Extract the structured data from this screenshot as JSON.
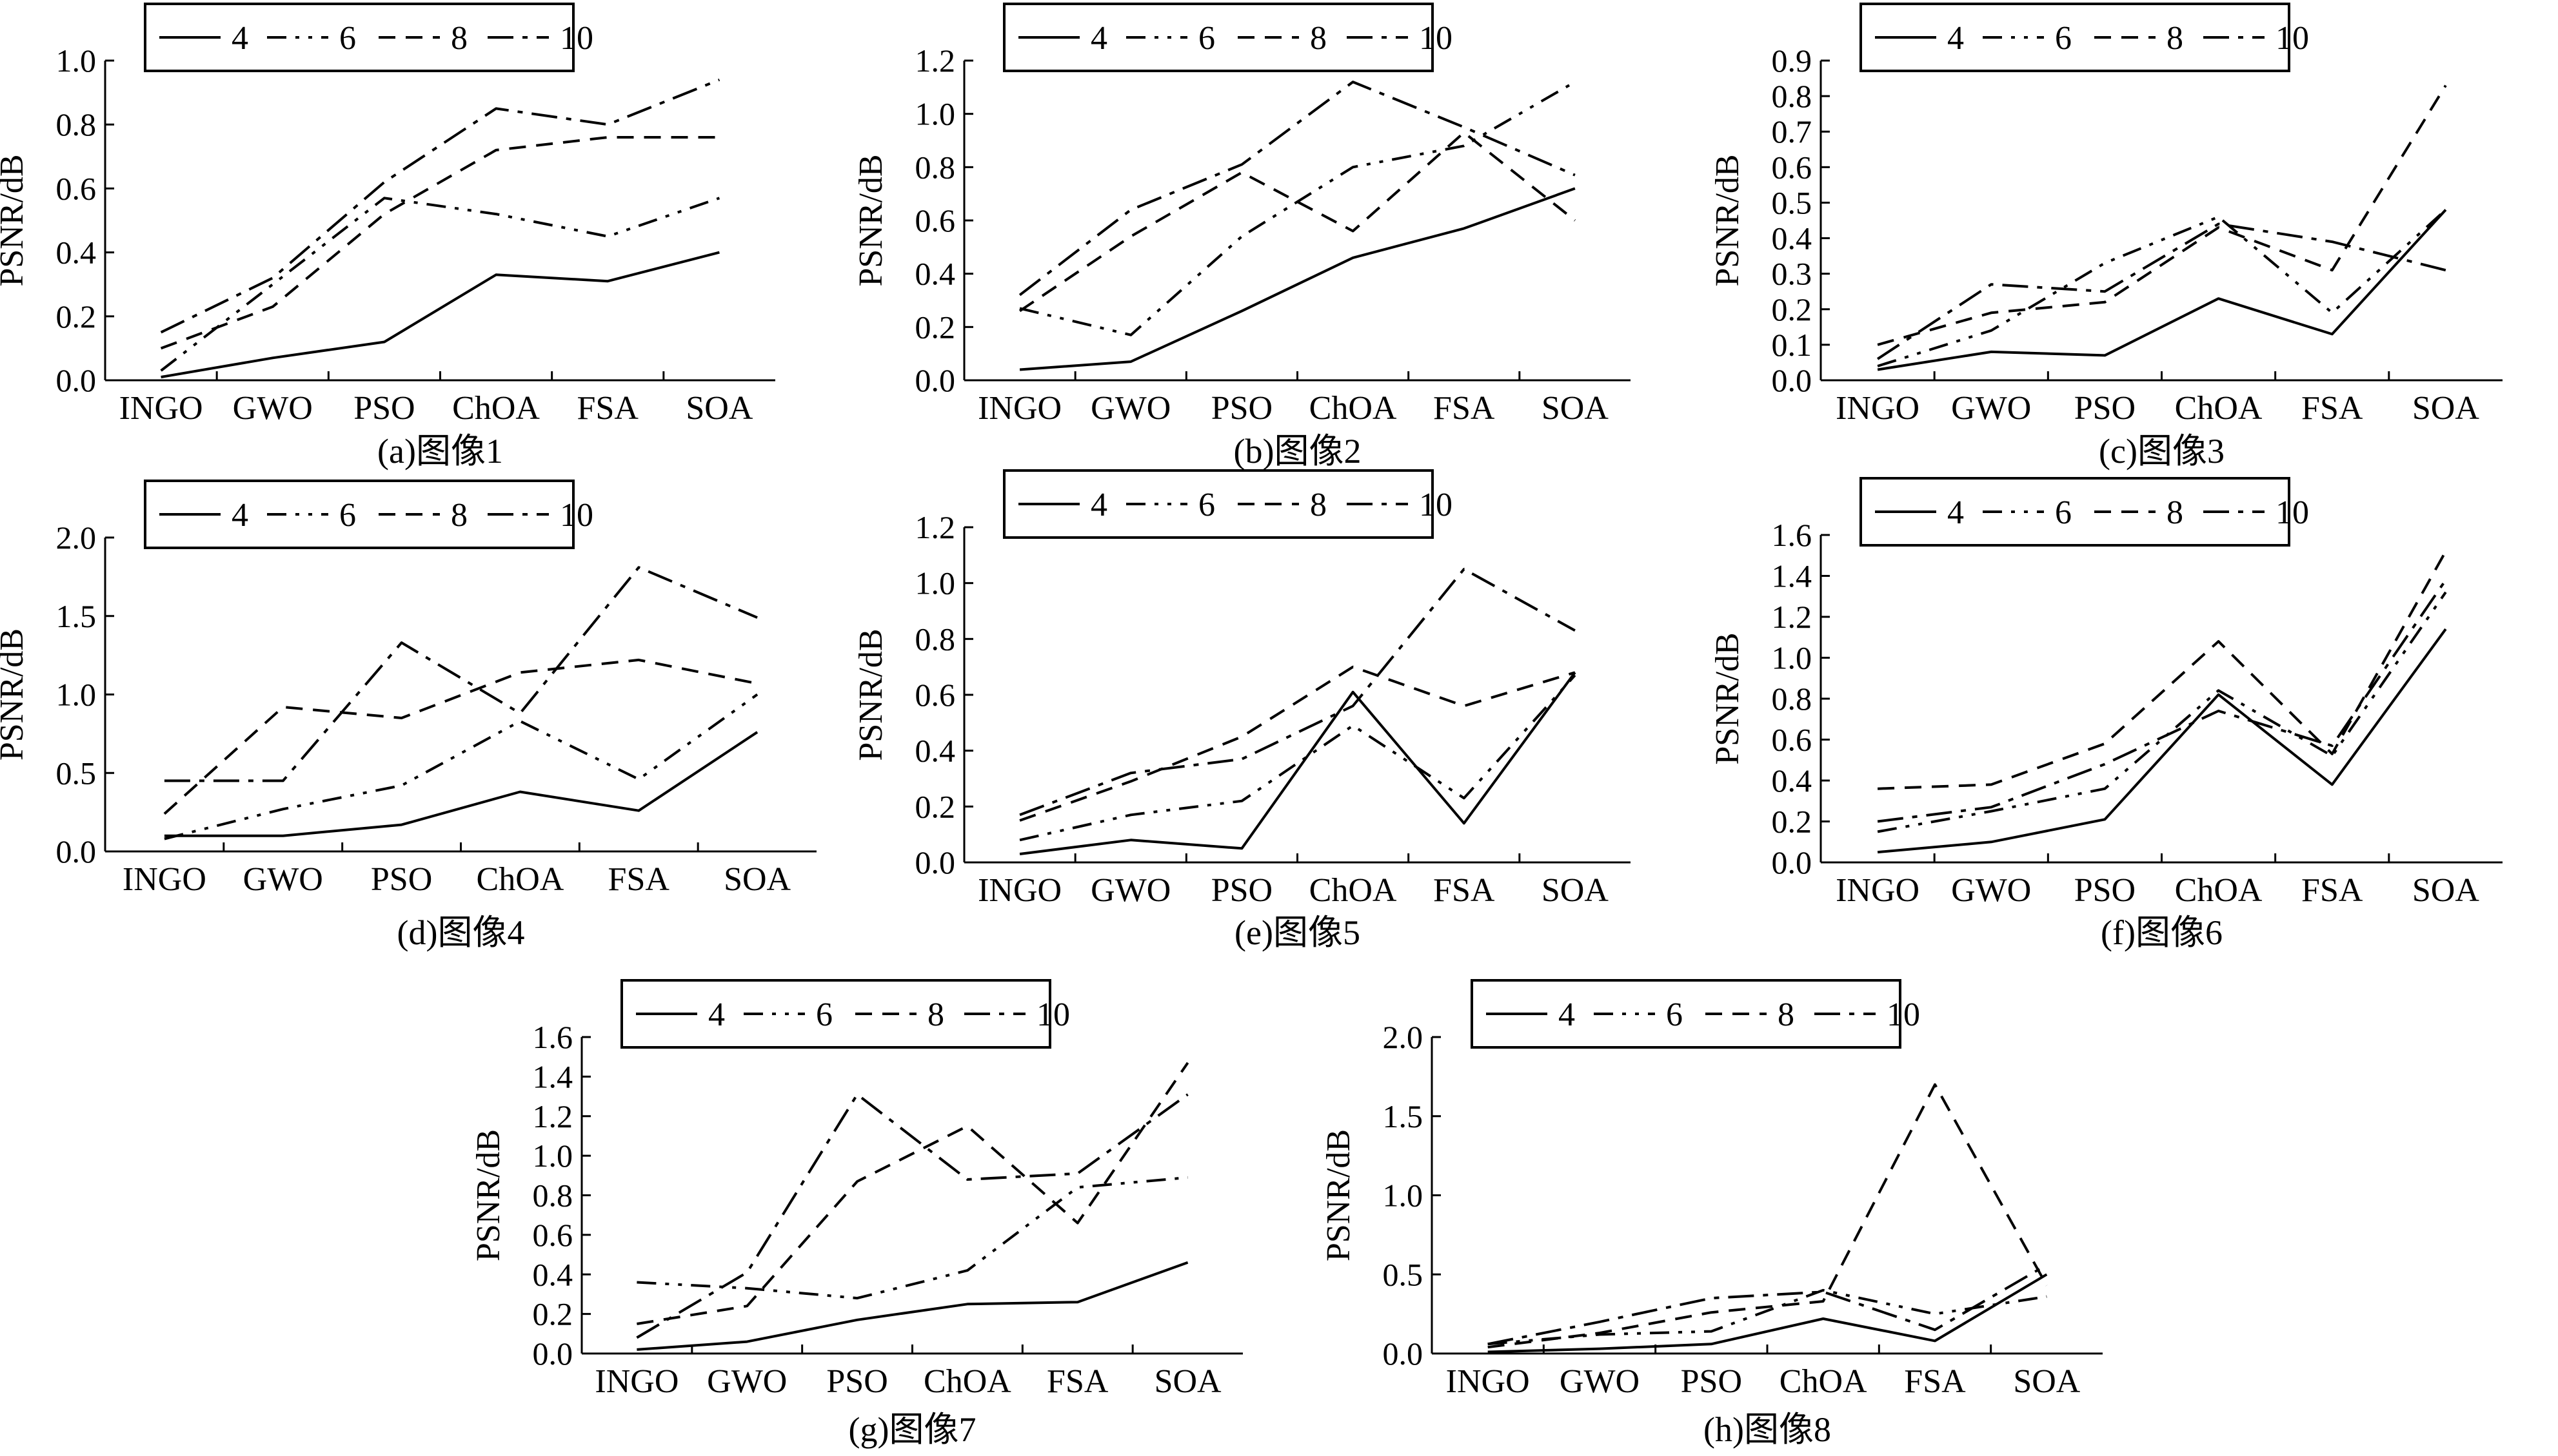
{
  "legend_labels": [
    "4",
    "6",
    "8",
    "10"
  ],
  "chart_data": [
    {
      "type": "line",
      "caption": "(a)图像1",
      "ylabel": "PSNR/dB",
      "categories": [
        "INGO",
        "GWO",
        "PSO",
        "ChOA",
        "FSA",
        "SOA"
      ],
      "ylim": [
        0,
        1.0
      ],
      "yticks": [
        "0.0",
        "0.2",
        "0.4",
        "0.6",
        "0.8",
        "1.0"
      ],
      "series": [
        {
          "name": "4",
          "values": [
            0.01,
            0.07,
            0.12,
            0.33,
            0.31,
            0.4
          ]
        },
        {
          "name": "6",
          "values": [
            0.03,
            0.3,
            0.57,
            0.52,
            0.45,
            0.57
          ]
        },
        {
          "name": "8",
          "values": [
            0.1,
            0.23,
            0.52,
            0.72,
            0.76,
            0.76
          ]
        },
        {
          "name": "10",
          "values": [
            0.15,
            0.32,
            0.62,
            0.85,
            0.8,
            0.94
          ]
        }
      ]
    },
    {
      "type": "line",
      "caption": "(b)图像2",
      "ylabel": "PSNR/dB",
      "categories": [
        "INGO",
        "GWO",
        "PSO",
        "ChOA",
        "FSA",
        "SOA"
      ],
      "ylim": [
        0,
        1.2
      ],
      "yticks": [
        "0.0",
        "0.2",
        "0.4",
        "0.6",
        "0.8",
        "1.0",
        "1.2"
      ],
      "series": [
        {
          "name": "4",
          "values": [
            0.04,
            0.07,
            0.26,
            0.46,
            0.57,
            0.72
          ]
        },
        {
          "name": "6",
          "values": [
            0.27,
            0.17,
            0.54,
            0.8,
            0.88,
            1.12
          ]
        },
        {
          "name": "8",
          "values": [
            0.26,
            0.54,
            0.78,
            0.56,
            0.93,
            0.6
          ]
        },
        {
          "name": "10",
          "values": [
            0.32,
            0.64,
            0.81,
            1.12,
            0.95,
            0.77
          ]
        }
      ]
    },
    {
      "type": "line",
      "caption": "(c)图像3",
      "ylabel": "PSNR/dB",
      "categories": [
        "INGO",
        "GWO",
        "PSO",
        "ChOA",
        "FSA",
        "SOA"
      ],
      "ylim": [
        0,
        0.9
      ],
      "yticks": [
        "0.0",
        "0.1",
        "0.2",
        "0.3",
        "0.4",
        "0.5",
        "0.6",
        "0.7",
        "0.8",
        "0.9"
      ],
      "series": [
        {
          "name": "4",
          "values": [
            0.03,
            0.08,
            0.07,
            0.23,
            0.13,
            0.48
          ]
        },
        {
          "name": "6",
          "values": [
            0.04,
            0.14,
            0.33,
            0.46,
            0.19,
            0.48
          ]
        },
        {
          "name": "8",
          "values": [
            0.1,
            0.19,
            0.22,
            0.43,
            0.31,
            0.83
          ]
        },
        {
          "name": "10",
          "values": [
            0.06,
            0.27,
            0.25,
            0.44,
            0.39,
            0.31
          ]
        }
      ]
    },
    {
      "type": "line",
      "caption": "(d)图像4",
      "ylabel": "PSNR/dB",
      "categories": [
        "INGO",
        "GWO",
        "PSO",
        "ChOA",
        "FSA",
        "SOA"
      ],
      "ylim": [
        0,
        2.0
      ],
      "yticks": [
        "0.0",
        "0.5",
        "1.0",
        "1.5",
        "2.0"
      ],
      "series": [
        {
          "name": "4",
          "values": [
            0.1,
            0.1,
            0.17,
            0.38,
            0.26,
            0.76
          ]
        },
        {
          "name": "6",
          "values": [
            0.08,
            0.27,
            0.42,
            0.83,
            0.46,
            1.0
          ]
        },
        {
          "name": "8",
          "values": [
            0.24,
            0.92,
            0.85,
            1.14,
            1.22,
            1.07
          ]
        },
        {
          "name": "10",
          "values": [
            0.45,
            0.45,
            1.33,
            0.88,
            1.81,
            1.49
          ]
        }
      ]
    },
    {
      "type": "line",
      "caption": "(e)图像5",
      "ylabel": "PSNR/dB",
      "categories": [
        "INGO",
        "GWO",
        "PSO",
        "ChOA",
        "FSA",
        "SOA"
      ],
      "ylim": [
        0,
        1.2
      ],
      "yticks": [
        "0.0",
        "0.2",
        "0.4",
        "0.6",
        "0.8",
        "1.0",
        "1.2"
      ],
      "series": [
        {
          "name": "4",
          "values": [
            0.03,
            0.08,
            0.05,
            0.61,
            0.14,
            0.68
          ]
        },
        {
          "name": "6",
          "values": [
            0.08,
            0.17,
            0.22,
            0.49,
            0.23,
            0.67
          ]
        },
        {
          "name": "8",
          "values": [
            0.15,
            0.29,
            0.45,
            0.7,
            0.56,
            0.68
          ]
        },
        {
          "name": "10",
          "values": [
            0.17,
            0.32,
            0.37,
            0.56,
            1.05,
            0.83
          ]
        }
      ]
    },
    {
      "type": "line",
      "caption": "(f)图像6",
      "ylabel": "PSNR/dB",
      "categories": [
        "INGO",
        "GWO",
        "PSO",
        "ChOA",
        "FSA",
        "SOA"
      ],
      "ylim": [
        0,
        1.6
      ],
      "yticks": [
        "0.0",
        "0.2",
        "0.4",
        "0.6",
        "0.8",
        "1.0",
        "1.2",
        "1.4",
        "1.6"
      ],
      "series": [
        {
          "name": "4",
          "values": [
            0.05,
            0.1,
            0.21,
            0.82,
            0.38,
            1.14
          ]
        },
        {
          "name": "6",
          "values": [
            0.15,
            0.25,
            0.36,
            0.84,
            0.52,
            1.32
          ]
        },
        {
          "name": "8",
          "values": [
            0.36,
            0.38,
            0.58,
            1.08,
            0.53,
            1.52
          ]
        },
        {
          "name": "10",
          "values": [
            0.2,
            0.27,
            0.48,
            0.74,
            0.57,
            1.38
          ]
        }
      ]
    },
    {
      "type": "line",
      "caption": "(g)图像7",
      "ylabel": "PSNR/dB",
      "categories": [
        "INGO",
        "GWO",
        "PSO",
        "ChOA",
        "FSA",
        "SOA"
      ],
      "ylim": [
        0,
        1.6
      ],
      "yticks": [
        "0.0",
        "0.2",
        "0.4",
        "0.6",
        "0.8",
        "1.0",
        "1.2",
        "1.4",
        "1.6"
      ],
      "series": [
        {
          "name": "4",
          "values": [
            0.02,
            0.06,
            0.17,
            0.25,
            0.26,
            0.46
          ]
        },
        {
          "name": "6",
          "values": [
            0.36,
            0.33,
            0.28,
            0.42,
            0.84,
            0.89
          ]
        },
        {
          "name": "8",
          "values": [
            0.15,
            0.24,
            0.87,
            1.15,
            0.66,
            1.47
          ]
        },
        {
          "name": "10",
          "values": [
            0.08,
            0.41,
            1.31,
            0.88,
            0.91,
            1.31
          ]
        }
      ]
    },
    {
      "type": "line",
      "caption": "(h)图像8",
      "ylabel": "PSNR/dB",
      "categories": [
        "INGO",
        "GWO",
        "PSO",
        "ChOA",
        "FSA",
        "SOA"
      ],
      "ylim": [
        0,
        2.0
      ],
      "yticks": [
        "0.0",
        "0.5",
        "1.0",
        "1.5",
        "2.0"
      ],
      "series": [
        {
          "name": "4",
          "values": [
            0.01,
            0.03,
            0.06,
            0.22,
            0.08,
            0.5
          ]
        },
        {
          "name": "6",
          "values": [
            0.06,
            0.12,
            0.14,
            0.4,
            0.25,
            0.36
          ]
        },
        {
          "name": "8",
          "values": [
            0.04,
            0.13,
            0.26,
            0.33,
            1.7,
            0.43
          ]
        },
        {
          "name": "10",
          "values": [
            0.06,
            0.2,
            0.35,
            0.39,
            0.15,
            0.56
          ]
        }
      ]
    }
  ]
}
